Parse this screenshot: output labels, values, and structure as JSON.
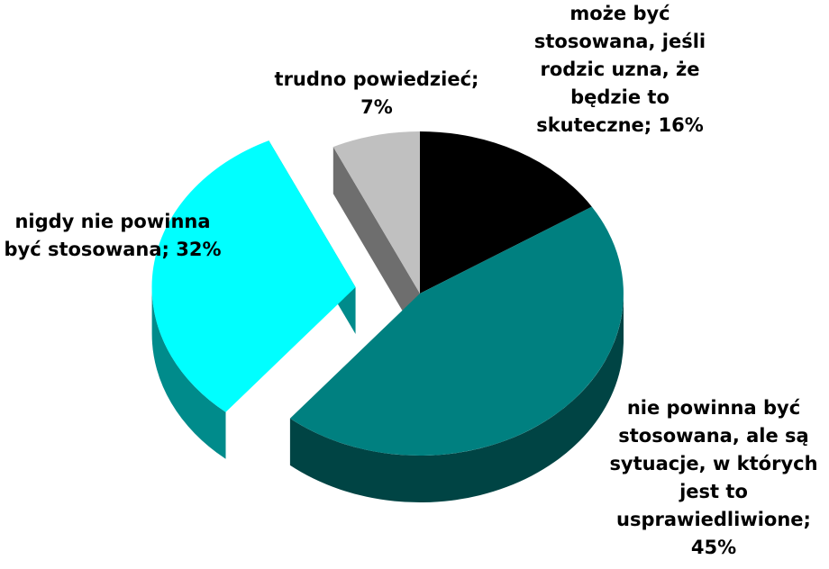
{
  "chart_data": {
    "type": "pie",
    "style": "3d-exploded",
    "slices": [
      {
        "label": "może być stosowana, jeśli rodzic uzna, że będzie to skuteczne; 16%",
        "value": 16,
        "color": "#000000",
        "side_color": "#000000"
      },
      {
        "label": "nie powinna być stosowana, ale są sytuacje, w których jest to usprawiedliwione; 45%",
        "value": 45,
        "color": "#008080",
        "side_color": "#004444"
      },
      {
        "label": "nigdy nie powinna być stosowana; 32%",
        "value": 32,
        "color": "#00FFFF",
        "side_color": "#008B8B",
        "exploded": true
      },
      {
        "label": "trudno powiedzieć; 7%",
        "value": 7,
        "color": "#C0C0C0",
        "side_color": "#6E6E6E"
      }
    ],
    "start_angle_deg": 0,
    "direction": "clockwise",
    "legend": "none"
  }
}
